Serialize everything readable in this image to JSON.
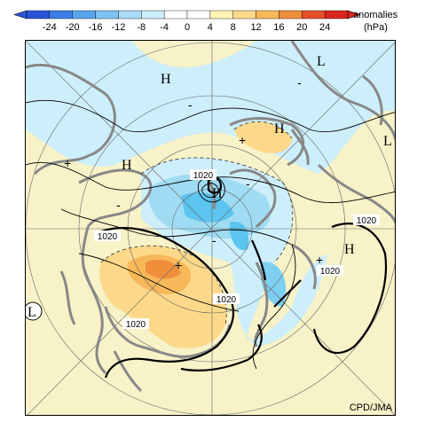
{
  "colorbar": {
    "ticks": [
      "-24",
      "-20",
      "-16",
      "-12",
      "-8",
      "-4",
      "0",
      "4",
      "8",
      "12",
      "16",
      "20",
      "24"
    ],
    "title_line1": "anomalies",
    "title_line2": "(hPa)",
    "colors": [
      "#2a55d8",
      "#3d7ee6",
      "#59a6ee",
      "#7dc3f3",
      "#a7dcf6",
      "#cdeefb",
      "#ffffff",
      "#fff3b5",
      "#fcd98a",
      "#f7b85a",
      "#f08f3a",
      "#e8502a",
      "#d9261c"
    ]
  },
  "map": {
    "contour_labels": [
      "1020",
      "1020",
      "1020",
      "1020",
      "1020",
      "1020"
    ],
    "pressure_systems": [
      "H",
      "H",
      "H",
      "H",
      "H",
      "L",
      "L",
      "L"
    ],
    "credit": "CPD/JMA",
    "colors": {
      "land_fill": "#f7f2c8",
      "coast": "#888888",
      "neg": "#9fdcf3",
      "neg_strong": "#2ab8f0",
      "pos": "#fcd98a",
      "pos_strong": "#f07a1e"
    }
  }
}
